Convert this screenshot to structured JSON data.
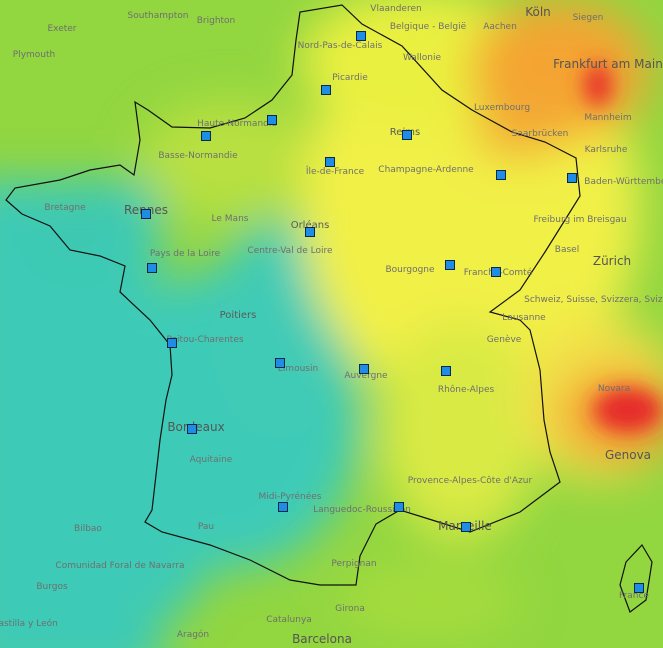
{
  "map": {
    "labels": [
      "Southampton",
      "Brighton",
      "Exeter",
      "Plymouth",
      "Vlaanderen",
      "Belgique - België",
      "Köln",
      "Siegen",
      "Aachen",
      "Nord-Pas-de-Calais",
      "Wallonie",
      "Frankfurt am Main",
      "Luxembourg",
      "Picardie",
      "Haute-Normandie",
      "Basse-Normandie",
      "Saarbrücken",
      "Reims",
      "Mannheim",
      "Île-de-France",
      "Champagne-Ardenne",
      "Karlsruhe",
      "Bretagne",
      "Rennes",
      "Le Mans",
      "Baden-Württemberg",
      "Freiburg im Breisgau",
      "Orléans",
      "Centre-Val de Loire",
      "Pays de la Loire",
      "Bourgogne",
      "Franche-Comté",
      "Basel",
      "Zürich",
      "Schweiz, Suisse, Svizzera, Svizra",
      "Poitiers",
      "Lausanne",
      "Poitou-Charentes",
      "Genève",
      "Limousin",
      "Auvergne",
      "Rhône-Alpes",
      "Novara",
      "Bordeaux",
      "Aquitaine",
      "Genova",
      "Midi-Pyrénées",
      "Provence-Alpes-Côte d'Azur",
      "Languedoc-Roussillon",
      "Marseille",
      "Bilbao",
      "Pau",
      "Comunidad Foral de Navarra",
      "Perpignan",
      "Burgos",
      "Girona",
      "Castilla y León",
      "Aragón",
      "Catalunya",
      "Barcelona",
      "France"
    ]
  }
}
